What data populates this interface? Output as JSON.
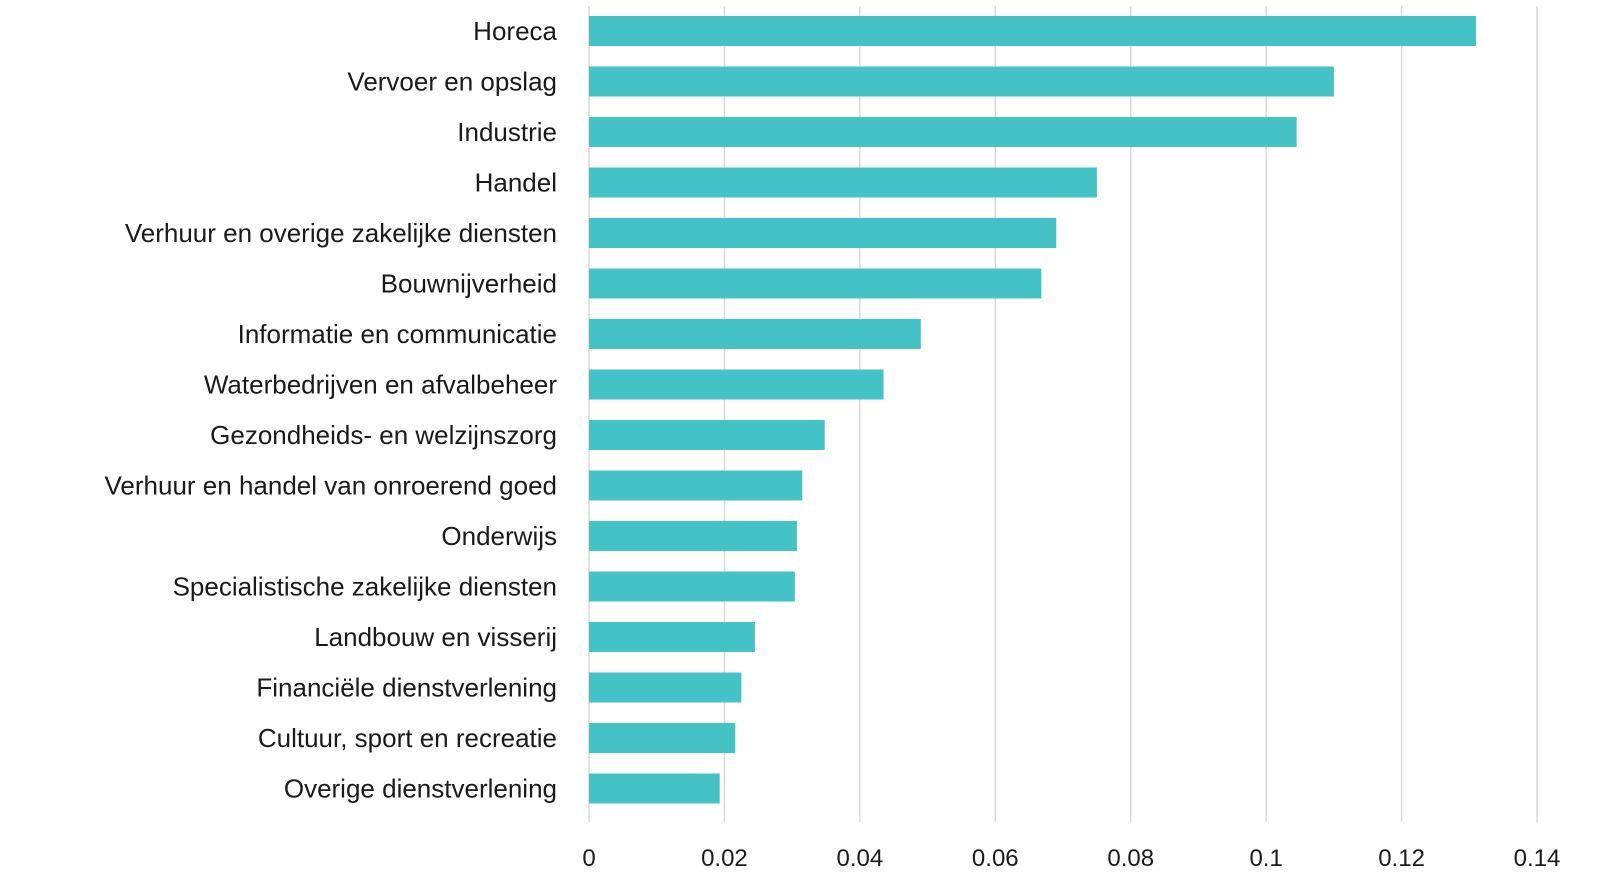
{
  "chart_data": {
    "type": "bar",
    "orientation": "horizontal",
    "categories": [
      "Horeca",
      "Vervoer en opslag ",
      "Industrie",
      "Handel",
      "Verhuur en overige zakelijke diensten",
      "Bouwnijverheid",
      "Informatie en communicatie",
      "Waterbedrijven en afvalbeheer",
      "Gezondheids- en welzijnszorg ",
      "Verhuur en handel van onroerend goed",
      "Onderwijs ",
      "Specialistische zakelijke diensten",
      "Landbouw en visserij",
      "Financiële dienstverlening",
      "Cultuur, sport en recreatie",
      "Overige dienstverlening"
    ],
    "values": [
      0.131,
      0.11,
      0.1045,
      0.075,
      0.069,
      0.0668,
      0.049,
      0.0435,
      0.0348,
      0.0315,
      0.0307,
      0.0304,
      0.0245,
      0.0225,
      0.0216,
      0.0193
    ],
    "xticks": [
      "0",
      "0.02",
      "0.04",
      "0.06",
      "0.08",
      "0.1",
      "0.12",
      "0.14"
    ],
    "xlim": [
      0,
      0.14
    ],
    "title": "",
    "xlabel": "",
    "ylabel": "",
    "grid": "vertical",
    "legend": "none",
    "bar_color": "#45C2C5"
  }
}
